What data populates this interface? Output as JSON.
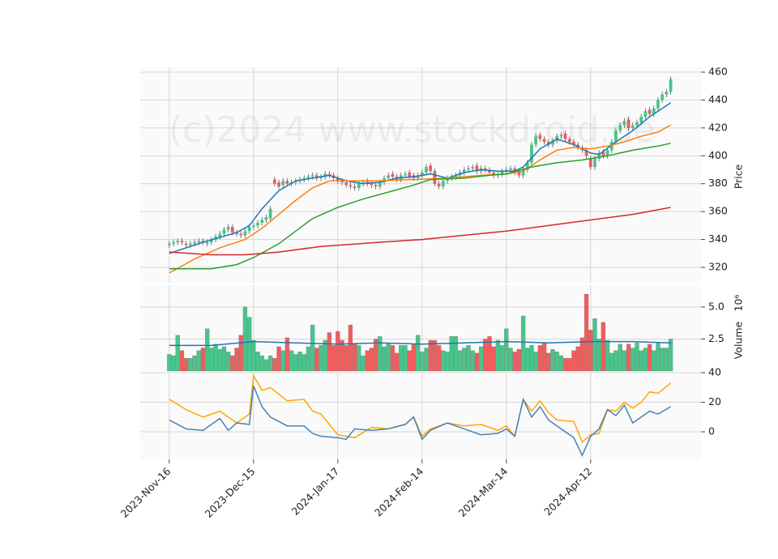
{
  "chart_data": [
    {
      "type": "candlestick",
      "watermark": "(c)2024 www.stockdroid.de",
      "ylabel": "Price",
      "ylim": [
        308.4,
        463.5
      ],
      "yticks": [
        320,
        340,
        360,
        380,
        400,
        420,
        440,
        460
      ],
      "xlim": [
        -6.9,
        126.2
      ],
      "grid": true,
      "up_color": "#47c58b",
      "down_color": "#f25c5c",
      "open": [
        336,
        337,
        338,
        339,
        337,
        336,
        337,
        338,
        339,
        337,
        338,
        340,
        342,
        344,
        347,
        349,
        345,
        344,
        343,
        346,
        349,
        350,
        352,
        354,
        355,
        383,
        381,
        379,
        382,
        380,
        381,
        382,
        383,
        384,
        385,
        386,
        384,
        385,
        387,
        386,
        384,
        382,
        381,
        379,
        378,
        377,
        380,
        382,
        380,
        379,
        378,
        381,
        384,
        387,
        385,
        383,
        386,
        388,
        386,
        384,
        386,
        388,
        393,
        389,
        380,
        378,
        382,
        384,
        385,
        386,
        388,
        390,
        391,
        393,
        389,
        391,
        390,
        388,
        386,
        387,
        389,
        390,
        391,
        389,
        386,
        390,
        395,
        408,
        415,
        412,
        410,
        408,
        411,
        414,
        416,
        412,
        410,
        408,
        406,
        404,
        398,
        392,
        398,
        403,
        400,
        404,
        410,
        418,
        422,
        426,
        420,
        422,
        424,
        428,
        433,
        430,
        434,
        440,
        444,
        446
      ],
      "high": [
        339,
        340,
        341,
        341,
        339,
        339,
        340,
        341,
        341,
        340,
        342,
        344,
        346,
        349,
        351,
        351,
        347,
        346,
        348,
        351,
        352,
        354,
        356,
        358,
        364,
        385,
        383,
        384,
        384,
        383,
        384,
        385,
        386,
        387,
        388,
        388,
        387,
        389,
        389,
        388,
        386,
        384,
        383,
        381,
        380,
        382,
        383,
        384,
        382,
        381,
        383,
        386,
        388,
        389,
        387,
        388,
        389,
        390,
        388,
        388,
        390,
        394,
        395,
        391,
        382,
        384,
        386,
        387,
        388,
        390,
        392,
        393,
        394,
        395,
        393,
        393,
        392,
        390,
        389,
        391,
        392,
        393,
        393,
        391,
        392,
        397,
        410,
        416,
        417,
        414,
        412,
        413,
        416,
        417,
        418,
        414,
        412,
        410,
        408,
        406,
        400,
        400,
        404,
        405,
        406,
        412,
        420,
        424,
        427,
        428,
        424,
        426,
        430,
        434,
        435,
        436,
        442,
        446,
        448,
        457
      ],
      "low": [
        334,
        335,
        336,
        336,
        334,
        334,
        335,
        336,
        336,
        335,
        336,
        338,
        340,
        342,
        345,
        343,
        342,
        341,
        341,
        344,
        347,
        348,
        350,
        352,
        353,
        378,
        376,
        377,
        378,
        378,
        379,
        380,
        381,
        382,
        383,
        382,
        382,
        383,
        384,
        382,
        380,
        379,
        377,
        376,
        375,
        375,
        378,
        378,
        377,
        376,
        376,
        379,
        382,
        383,
        381,
        381,
        384,
        383,
        382,
        382,
        384,
        386,
        387,
        378,
        376,
        376,
        380,
        382,
        383,
        384,
        386,
        388,
        389,
        387,
        387,
        388,
        386,
        384,
        384,
        385,
        387,
        388,
        386,
        384,
        384,
        388,
        393,
        406,
        410,
        408,
        406,
        406,
        409,
        412,
        410,
        408,
        406,
        404,
        402,
        398,
        390,
        390,
        396,
        398,
        398,
        402,
        408,
        416,
        420,
        418,
        418,
        420,
        422,
        426,
        428,
        428,
        432,
        438,
        442,
        444
      ],
      "close": [
        337,
        338,
        339,
        338,
        336,
        337,
        338,
        339,
        338,
        338,
        340,
        342,
        344,
        347,
        349,
        345,
        344,
        343,
        346,
        349,
        350,
        352,
        354,
        356,
        362,
        380,
        378,
        382,
        380,
        381,
        382,
        383,
        384,
        385,
        386,
        384,
        385,
        387,
        386,
        384,
        382,
        381,
        379,
        378,
        377,
        380,
        381,
        380,
        379,
        378,
        381,
        384,
        386,
        385,
        383,
        386,
        387,
        385,
        384,
        386,
        388,
        392,
        389,
        380,
        378,
        382,
        384,
        385,
        386,
        388,
        390,
        391,
        392,
        389,
        391,
        390,
        388,
        386,
        387,
        389,
        390,
        391,
        388,
        386,
        390,
        395,
        408,
        414,
        412,
        410,
        408,
        411,
        414,
        415,
        412,
        410,
        408,
        406,
        404,
        400,
        392,
        398,
        402,
        400,
        404,
        410,
        418,
        422,
        425,
        420,
        422,
        424,
        428,
        432,
        430,
        434,
        440,
        444,
        446,
        455
      ],
      "series": [
        {
          "color": "#1f77b4",
          "x": [
            0,
            8,
            16,
            19,
            22,
            26,
            30,
            34,
            38,
            42,
            46,
            50,
            54,
            58,
            62,
            66,
            70,
            74,
            78,
            82,
            84,
            88,
            92,
            96,
            100,
            102,
            106,
            110,
            114,
            119
          ],
          "values": [
            330,
            338,
            345,
            350,
            362,
            375,
            382,
            384,
            386,
            382,
            380,
            381,
            384,
            385,
            387,
            384,
            388,
            390,
            389,
            389,
            392,
            405,
            412,
            408,
            402,
            401,
            410,
            418,
            428,
            438
          ]
        },
        {
          "color": "#ff7f0e",
          "x": [
            0,
            6,
            12,
            18,
            22,
            26,
            30,
            34,
            38,
            42,
            50,
            58,
            66,
            74,
            80,
            84,
            88,
            92,
            96,
            100,
            104,
            108,
            112,
            116,
            119
          ],
          "values": [
            316,
            326,
            334,
            340,
            348,
            358,
            368,
            377,
            382,
            382,
            382,
            383,
            384,
            386,
            387,
            389,
            397,
            404,
            406,
            405,
            407,
            410,
            414,
            417,
            422
          ]
        },
        {
          "color": "#2ca02c",
          "x": [
            0,
            10,
            16,
            20,
            26,
            30,
            34,
            40,
            46,
            52,
            58,
            62,
            70,
            76,
            80,
            86,
            92,
            98,
            104,
            110,
            116,
            119
          ],
          "values": [
            319,
            319,
            322,
            327,
            337,
            346,
            355,
            363,
            369,
            374,
            379,
            383,
            384,
            386,
            387,
            392,
            395,
            397,
            400,
            404,
            407,
            409
          ]
        },
        {
          "color": "#d62728",
          "x": [
            0,
            10,
            18,
            26,
            36,
            50,
            60,
            70,
            80,
            90,
            100,
            110,
            119
          ],
          "values": [
            331,
            329,
            329,
            331,
            335,
            338,
            340,
            343,
            346,
            350,
            354,
            358,
            363
          ]
        }
      ]
    },
    {
      "type": "volume",
      "ylabel": "Volume",
      "exponent": "10⁶",
      "ylim": [
        0,
        6.7
      ],
      "yticks": [
        2.5,
        {
          "value": 5,
          "label": "5.0"
        }
      ],
      "grid": true,
      "values": [
        1.3,
        1.2,
        2.8,
        1.6,
        1.0,
        1.0,
        1.2,
        1.6,
        1.8,
        3.3,
        1.8,
        2.1,
        1.7,
        1.9,
        1.5,
        1.2,
        1.8,
        2.8,
        5.0,
        4.2,
        2.4,
        1.5,
        1.2,
        0.9,
        1.2,
        1.0,
        1.9,
        1.6,
        2.6,
        1.6,
        1.3,
        1.5,
        1.3,
        1.9,
        3.6,
        1.8,
        2.0,
        2.4,
        3.0,
        2.0,
        3.1,
        2.4,
        2.0,
        3.6,
        2.1,
        2.0,
        1.2,
        1.6,
        1.8,
        2.5,
        2.7,
        1.9,
        2.2,
        2.0,
        1.4,
        2.0,
        2.0,
        1.6,
        2.1,
        2.8,
        1.5,
        1.8,
        2.4,
        2.4,
        2.0,
        1.6,
        1.5,
        2.7,
        2.7,
        1.6,
        1.8,
        2.0,
        1.6,
        1.4,
        1.9,
        2.5,
        2.7,
        1.9,
        2.4,
        2.0,
        3.3,
        1.8,
        1.5,
        1.7,
        4.3,
        1.8,
        2.0,
        1.5,
        2.0,
        2.2,
        1.4,
        1.7,
        1.5,
        1.2,
        1.0,
        1.0,
        1.6,
        1.9,
        2.6,
        6.0,
        3.2,
        4.1,
        2.5,
        3.8,
        2.4,
        1.4,
        1.6,
        2.1,
        1.6,
        2.1,
        1.8,
        2.2,
        1.6,
        1.8,
        2.1,
        1.6,
        2.2,
        1.8,
        1.8,
        2.5
      ],
      "series": [
        {
          "color": "#1f77b4",
          "x": [
            0,
            10,
            20,
            30,
            40,
            50,
            60,
            70,
            80,
            90,
            100,
            110,
            119
          ],
          "values": [
            2.0,
            2.0,
            2.3,
            2.2,
            2.1,
            2.2,
            2.1,
            2.2,
            2.3,
            2.2,
            2.3,
            2.3,
            2.2
          ]
        }
      ]
    },
    {
      "type": "line",
      "ylim": [
        -18.6,
        40
      ],
      "yticks": [
        0,
        20,
        40
      ],
      "grid": true,
      "xticks": [
        {
          "value": 0,
          "label": "2023-Nov-16"
        },
        {
          "value": 20,
          "label": "2023-Dec-15"
        },
        {
          "value": 40,
          "label": "2024-Jan-17"
        },
        {
          "value": 60,
          "label": "2024-Feb-14"
        },
        {
          "value": 80,
          "label": "2024-Mar-14"
        },
        {
          "value": 100,
          "label": "2024-Apr-12"
        }
      ],
      "series": [
        {
          "color": "#ffa500",
          "x": [
            0,
            4,
            8,
            12,
            16,
            19,
            20,
            22,
            24,
            28,
            32,
            34,
            36,
            40,
            44,
            48,
            52,
            56,
            58,
            60,
            62,
            66,
            70,
            74,
            78,
            80,
            82,
            84,
            86,
            88,
            90,
            92,
            96,
            98,
            100,
            102,
            104,
            106,
            108,
            110,
            112,
            114,
            116,
            119
          ],
          "values": [
            22,
            15,
            10,
            14,
            6,
            12,
            38,
            28,
            30,
            21,
            22,
            14,
            12,
            -2,
            -4,
            3,
            2,
            5,
            10,
            -3,
            2,
            6,
            4,
            5,
            1,
            4,
            -3,
            22,
            14,
            21,
            13,
            8,
            7,
            -7,
            -2,
            -1,
            15,
            14,
            20,
            16,
            20,
            27,
            26,
            33
          ]
        },
        {
          "color": "#4682b4",
          "x": [
            0,
            4,
            8,
            12,
            14,
            16,
            19,
            20,
            22,
            24,
            28,
            32,
            34,
            36,
            40,
            42,
            44,
            48,
            52,
            56,
            58,
            60,
            62,
            66,
            70,
            74,
            78,
            80,
            82,
            84,
            86,
            88,
            90,
            92,
            96,
            98,
            100,
            102,
            104,
            106,
            108,
            110,
            112,
            114,
            116,
            119
          ],
          "values": [
            8,
            2,
            1,
            9,
            1,
            6,
            5,
            31,
            17,
            10,
            4,
            4,
            -1,
            -3,
            -4,
            -5,
            2,
            1,
            2,
            5,
            10,
            -5,
            1,
            6,
            2,
            -2,
            -1,
            2,
            -3,
            22,
            10,
            17,
            8,
            4,
            -4,
            -16,
            -3,
            2,
            15,
            11,
            18,
            6,
            10,
            14,
            12,
            17
          ]
        }
      ]
    }
  ]
}
